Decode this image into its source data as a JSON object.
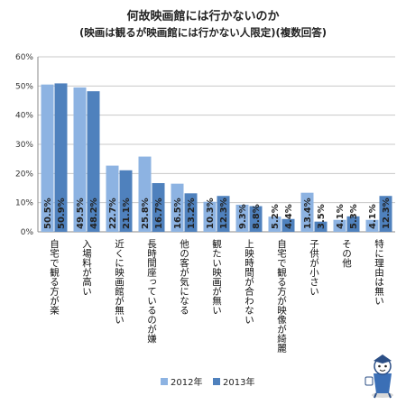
{
  "chart_data": {
    "type": "bar",
    "title": "何故映画館には行かないのか",
    "subtitle": "(映画は観るが映画館には行かない人限定)(複数回答)",
    "categories": [
      "自宅で観る方が楽",
      "入場料が高い",
      "近くに映画館が無い",
      "長時間座っているのが嫌",
      "他の客が気になる",
      "観たい映画が無い",
      "上映時間が合わない",
      "自宅で観る方が映像が綺麗",
      "子供が小さい",
      "その他",
      "特に理由は無い"
    ],
    "series": [
      {
        "name": "2012年",
        "color": "#8DB3E2",
        "values": [
          50.5,
          49.5,
          22.7,
          25.8,
          16.5,
          10.3,
          9.3,
          5.2,
          13.4,
          4.1,
          4.1
        ]
      },
      {
        "name": "2013年",
        "color": "#4F81BD",
        "values": [
          50.9,
          48.2,
          21.1,
          16.7,
          13.2,
          12.3,
          8.8,
          4.4,
          3.5,
          5.3,
          12.3
        ]
      }
    ],
    "data_labels": [
      [
        "50.5%",
        "49.5%",
        "22.7%",
        "25.8%",
        "16.5%",
        "10.3%",
        "9.3%",
        "5.2%",
        "13.4%",
        "4.1%",
        "4.1%"
      ],
      [
        "50.9%",
        "48.2%",
        "21.1%",
        "16.7%",
        "13.2%",
        "12.3%",
        "8.8%",
        "4.4%",
        "3.5%",
        "5.3%",
        "12.3%"
      ]
    ],
    "yticks": [
      "0%",
      "10%",
      "20%",
      "30%",
      "40%",
      "50%",
      "60%"
    ],
    "ylim": [
      0,
      60
    ],
    "grid": true,
    "legend_position": "bottom"
  }
}
